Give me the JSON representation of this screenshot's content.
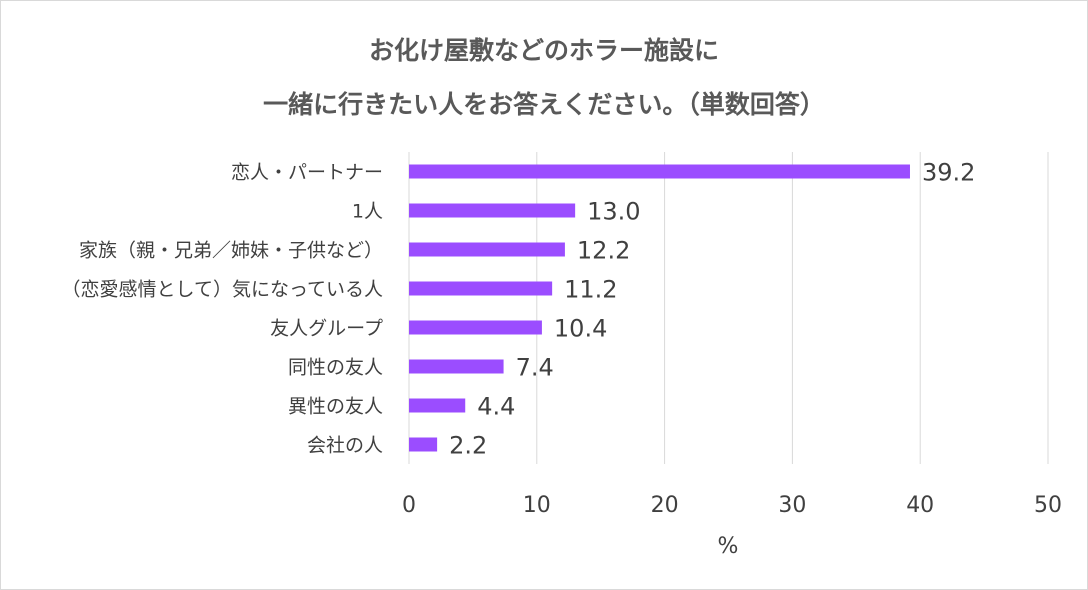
{
  "chart_data": {
    "type": "bar",
    "orientation": "horizontal",
    "title_lines": [
      "お化け屋敷などのホラー施設に",
      "一緒に行きたい人をお答えください。（単数回答）"
    ],
    "categories": [
      "恋人・パートナー",
      "1人",
      "家族（親・兄弟／姉妹・子供など）",
      "（恋愛感情として）気になっている人",
      "友人グループ",
      "同性の友人",
      "異性の友人",
      "会社の人"
    ],
    "values": [
      39.2,
      13.0,
      12.2,
      11.2,
      10.4,
      7.4,
      4.4,
      2.2
    ],
    "value_labels": [
      "39.2",
      "13.0",
      "12.2",
      "11.2",
      "10.4",
      "7.4",
      "4.4",
      "2.2"
    ],
    "xlabel": "%",
    "ylabel": "",
    "xlim": [
      0,
      50
    ],
    "xticks": [
      "0",
      "10",
      "20",
      "30",
      "40",
      "50"
    ],
    "grid": "vertical",
    "legend": "none",
    "bar_color": "#9B4DFF"
  }
}
